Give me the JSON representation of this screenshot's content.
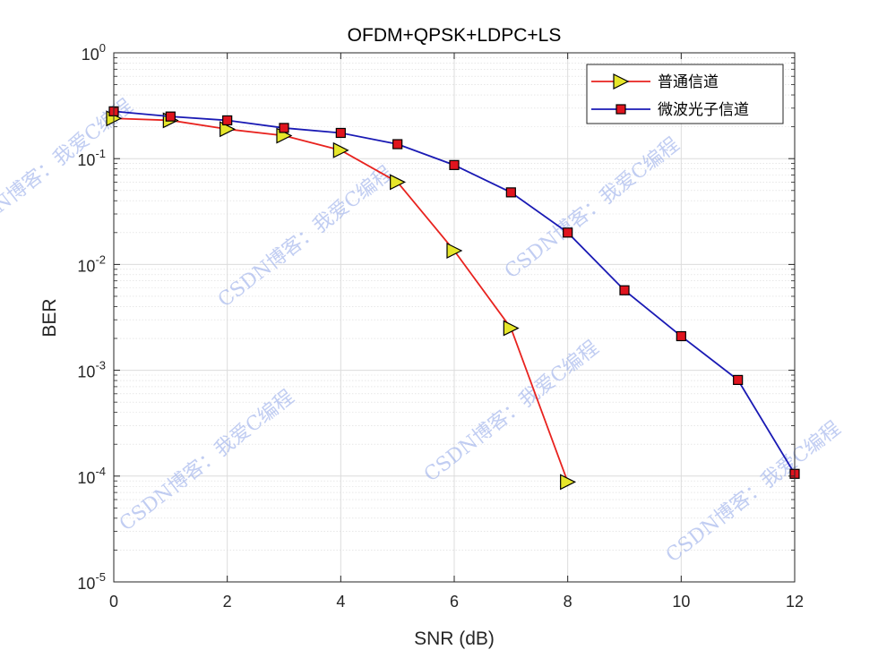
{
  "chart_data": {
    "type": "line",
    "title": "OFDM+QPSK+LDPC+LS",
    "xlabel": "SNR (dB)",
    "ylabel": "BER",
    "xlim": [
      0,
      12
    ],
    "ylim": [
      1e-05,
      1
    ],
    "yscale": "log",
    "grid": true,
    "minor_grid": true,
    "legend_position": "top-right",
    "x_ticks": [
      0,
      2,
      4,
      6,
      8,
      10,
      12
    ],
    "x_tick_labels": [
      "0",
      "2",
      "4",
      "6",
      "8",
      "10",
      "12"
    ],
    "y_ticks": [
      {
        "value": 1,
        "base": "10",
        "exp": "0"
      },
      {
        "value": 0.1,
        "base": "10",
        "exp": "-1"
      },
      {
        "value": 0.01,
        "base": "10",
        "exp": "-2"
      },
      {
        "value": 0.001,
        "base": "10",
        "exp": "-3"
      },
      {
        "value": 0.0001,
        "base": "10",
        "exp": "-4"
      },
      {
        "value": 1e-05,
        "base": "10",
        "exp": "-5"
      }
    ],
    "series": [
      {
        "name": "普通信道",
        "color": "#e8231f",
        "marker": "triangle-right",
        "marker_fill": "#e6e62a",
        "x": [
          0,
          1,
          2,
          3,
          4,
          5,
          6,
          7,
          8
        ],
        "y": [
          0.24,
          0.23,
          0.19,
          0.165,
          0.12,
          0.06,
          0.0135,
          0.0025,
          8.8e-05
        ]
      },
      {
        "name": "微波光子信道",
        "color": "#1a1ab4",
        "marker": "square",
        "marker_fill": "#e0141e",
        "x": [
          0,
          1,
          2,
          3,
          4,
          5,
          6,
          7,
          8,
          9,
          10,
          11,
          12
        ],
        "y": [
          0.28,
          0.25,
          0.23,
          0.195,
          0.175,
          0.137,
          0.087,
          0.048,
          0.02,
          0.0057,
          0.0021,
          0.00081,
          0.000105
        ]
      }
    ]
  },
  "watermarks": [
    "CSDN博客：我爱C编程",
    "CSDN博客：我爱C编程",
    "CSDN博客：我爱C编程",
    "CSDN博客：我爱C编程",
    "CSDN博客：我爱C编程",
    "CSDN博客：我爱C编程"
  ]
}
